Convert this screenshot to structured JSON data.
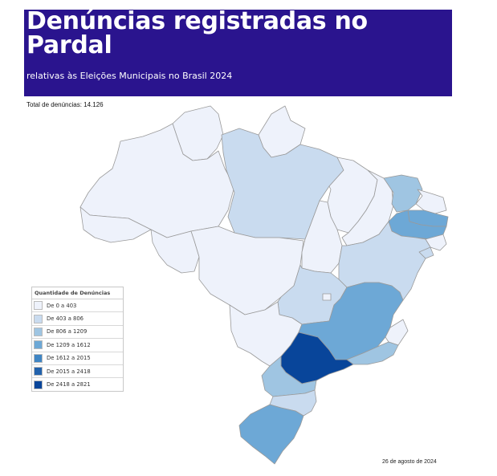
{
  "header": {
    "title": "Denúncias registradas no Pardal",
    "subtitle": "relativas às Eleições Municipais no Brasil 2024"
  },
  "total_label": "Total de denúncias: 14.126",
  "legend": {
    "title": "Quantidade de Denúncias",
    "items": [
      {
        "label": "De 0 a 403",
        "color": "#eef2fb"
      },
      {
        "label": "De 403 a 806",
        "color": "#c9dbef"
      },
      {
        "label": "De 806 a 1209",
        "color": "#9fc5e2"
      },
      {
        "label": "De 1209 a 1612",
        "color": "#6da8d6"
      },
      {
        "label": "De 1612 a 2015",
        "color": "#3f85c4"
      },
      {
        "label": "De 2015 a 2418",
        "color": "#2262ac"
      },
      {
        "label": "De 2418 a 2821",
        "color": "#08459a"
      }
    ]
  },
  "date_label": "26 de agosto de 2024"
}
